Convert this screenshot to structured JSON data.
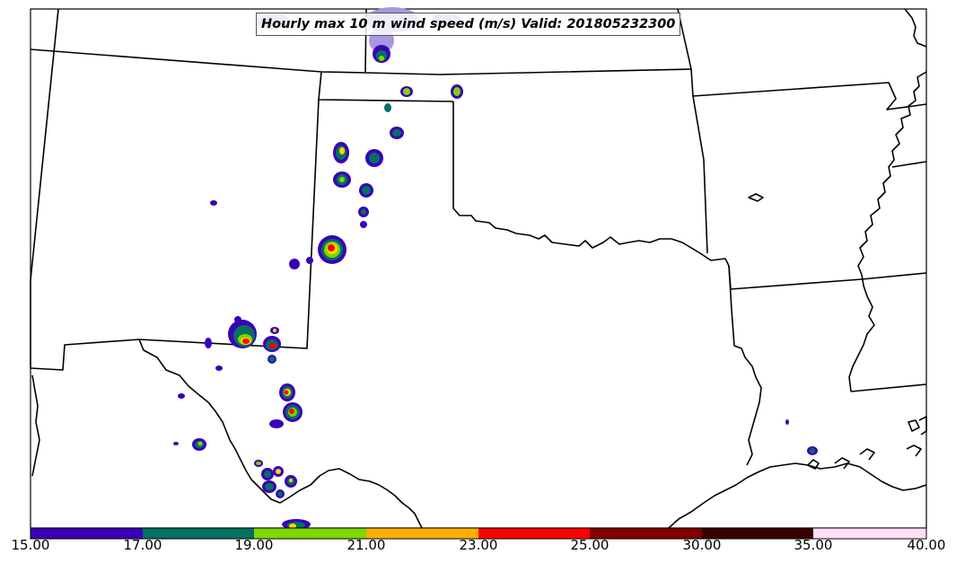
{
  "title": "Hourly max 10 m wind speed (m/s) Valid: 201805232300",
  "colorbar": {
    "ticks": [
      "15.00",
      "17.00",
      "19.00",
      "21.00",
      "23.00",
      "25.00",
      "30.00",
      "35.00",
      "40.00"
    ],
    "colors": [
      "#3a00b8",
      "#047060",
      "#7fd600",
      "#ffae00",
      "#ff0000",
      "#800000",
      "#3a0000",
      "#ffe0f6"
    ]
  },
  "palette": {
    "light": "#a898e0",
    "purple": "#3a00b8",
    "teal": "#047060",
    "green": "#7fd600",
    "yellow": "#ffd400",
    "red": "#ff0000"
  },
  "storm_cells": [
    {
      "id": "panhandle-north",
      "peak": "green"
    },
    {
      "id": "kansas-border",
      "peak": "green"
    },
    {
      "id": "north-cluster",
      "peak": "yellow"
    },
    {
      "id": "central-cell",
      "peak": "red"
    },
    {
      "id": "west-texas-cluster",
      "peak": "red"
    },
    {
      "id": "permian-cluster",
      "peak": "red"
    },
    {
      "id": "far-west-cell",
      "peak": "green"
    },
    {
      "id": "rio-grande-cluster",
      "peak": "yellow"
    },
    {
      "id": "gulf-cell",
      "peak": "teal"
    }
  ]
}
